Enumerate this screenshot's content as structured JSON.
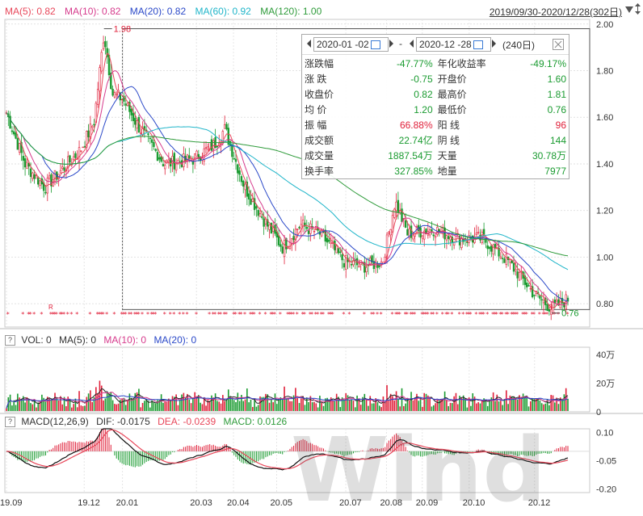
{
  "header": {
    "ma5": "MA(5): 0.82",
    "ma10": "MA(10): 0.82",
    "ma20": "MA(20): 0.82",
    "ma60": "MA(60): 0.92",
    "ma120": "MA(120): 1.00",
    "date_range": "2019/09/30-2020/12/28(302日)"
  },
  "vol_header": {
    "q": "?",
    "vol": "VOL: 0",
    "ma5": "MA(5): 0",
    "ma10": "MA(10): 0",
    "ma20": "MA(20): 0"
  },
  "macd_header": {
    "q": "?",
    "macd": "MACD(12,26,9)",
    "dif": "DIF: -0.0175",
    "dea": "DEA: -0.0239",
    "val": "MACD: 0.0126"
  },
  "popup": {
    "start_date": "2020-01 -02",
    "sep": "-",
    "end_date": "2020-12 -28",
    "days": "(240日)",
    "rows": [
      [
        "涨跌幅",
        "-47.77%",
        "年化收益率",
        "-49.17%"
      ],
      [
        "涨  跌",
        "-0.75",
        "开盘价",
        "1.60"
      ],
      [
        "收盘价",
        "0.82",
        "最高价",
        "1.81"
      ],
      [
        "均  价",
        "1.20",
        "最低价",
        "0.76"
      ],
      [
        "振  幅",
        "66.88%",
        "阳  线",
        "96"
      ],
      [
        "成交额",
        "22.74亿",
        "阴  线",
        "144"
      ],
      [
        "成交量",
        "1887.54万",
        "天量",
        "30.78万"
      ],
      [
        "换手率",
        "327.85%",
        "地量",
        "7977"
      ]
    ]
  },
  "colors": {
    "up": "#e0203a",
    "down": "#1a9b30",
    "ma5": "#e8475a",
    "ma10": "#d63a8c",
    "ma20": "#2a48c8",
    "ma60": "#1fb5c9",
    "ma120": "#2e9b3a"
  },
  "chart_data": {
    "type": "line",
    "price": {
      "ylim": [
        0.7,
        2.02
      ],
      "yticks": [
        "2.00",
        "1.80",
        "1.60",
        "1.40",
        "1.20",
        "1.00",
        "0.80"
      ],
      "annotations": [
        {
          "label": "1.98",
          "x": "2019-12-18",
          "y": 1.98
        },
        {
          "label": "0.76",
          "x": "2020-12-15",
          "y": 0.76
        }
      ],
      "close_keypoints": [
        [
          "2019-09-30",
          1.62
        ],
        [
          "2019-10-15",
          1.4
        ],
        [
          "2019-10-31",
          1.3
        ],
        [
          "2019-11-15",
          1.38
        ],
        [
          "2019-11-29",
          1.46
        ],
        [
          "2019-12-10",
          1.58
        ],
        [
          "2019-12-18",
          1.96
        ],
        [
          "2019-12-25",
          1.7
        ],
        [
          "2020-01-02",
          1.68
        ],
        [
          "2020-01-15",
          1.56
        ],
        [
          "2020-02-05",
          1.4
        ],
        [
          "2020-02-28",
          1.42
        ],
        [
          "2020-03-16",
          1.48
        ],
        [
          "2020-03-25",
          1.55
        ],
        [
          "2020-04-10",
          1.3
        ],
        [
          "2020-04-28",
          1.14
        ],
        [
          "2020-05-11",
          1.04
        ],
        [
          "2020-05-25",
          1.14
        ],
        [
          "2020-06-10",
          1.1
        ],
        [
          "2020-06-30",
          0.98
        ],
        [
          "2020-07-15",
          0.96
        ],
        [
          "2020-07-31",
          0.98
        ],
        [
          "2020-08-10",
          1.24
        ],
        [
          "2020-08-20",
          1.1
        ],
        [
          "2020-09-10",
          1.12
        ],
        [
          "2020-09-30",
          1.08
        ],
        [
          "2020-10-20",
          1.08
        ],
        [
          "2020-11-10",
          0.98
        ],
        [
          "2020-12-01",
          0.84
        ],
        [
          "2020-12-15",
          0.78
        ],
        [
          "2020-12-28",
          0.82
        ]
      ]
    },
    "volume": {
      "ylim": [
        0,
        45
      ],
      "unit": "万",
      "yticks": [
        "40万",
        "20万",
        "0"
      ]
    },
    "macd": {
      "ylim": [
        -0.22,
        0.12
      ],
      "yticks": [
        "0.10",
        "-0.05",
        "-0.20"
      ]
    },
    "x_tick_labels": [
      "19.09",
      "19.12",
      "20.01",
      "20.03",
      "20.04",
      "20.05",
      "20.07",
      "20.08",
      "20.09",
      "20.10",
      "20.12"
    ],
    "x_tick_dates": [
      "2019-09-30",
      "2019-12-02",
      "2020-01-02",
      "2020-03-02",
      "2020-04-01",
      "2020-05-06",
      "2020-07-01",
      "2020-08-03",
      "2020-09-01",
      "2020-10-09",
      "2020-12-01"
    ],
    "marker_labels": [
      "R",
      "R"
    ],
    "marker_dates": [
      "2019-11-05",
      "2020-12-14"
    ]
  }
}
